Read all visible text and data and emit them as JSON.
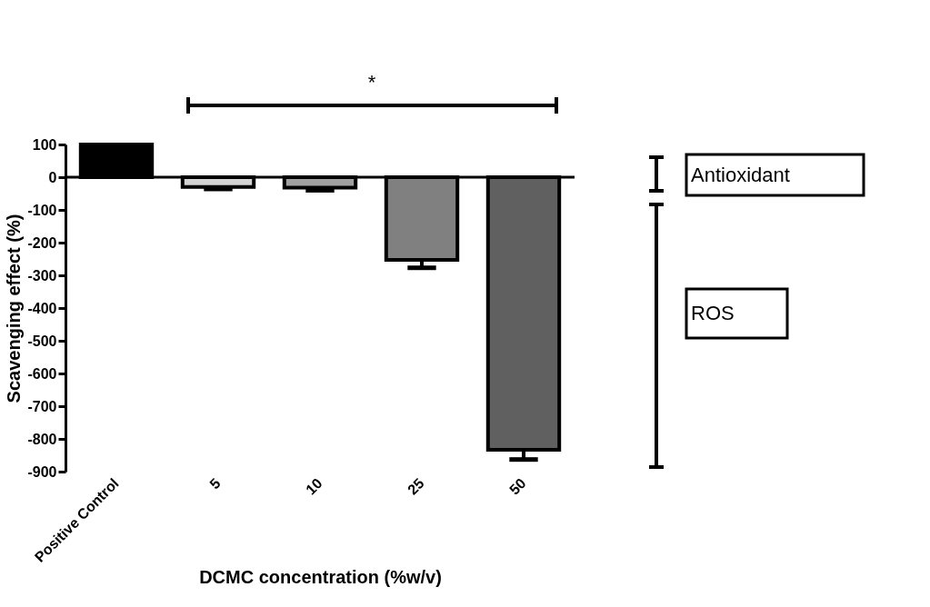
{
  "chart_data": {
    "type": "bar",
    "xlabel": "DCMC concentration (%w/v)",
    "ylabel": "Scavenging effect (%)",
    "categories": [
      "Positive Control",
      "5",
      "10",
      "25",
      "50"
    ],
    "values": [
      100,
      -30,
      -32,
      -253,
      -833
    ],
    "colors": [
      "#000000",
      "#d3d3d3",
      "#a0a0a0",
      "#808080",
      "#606060"
    ],
    "errors": [
      null,
      [
        -36,
        -30
      ],
      [
        -40,
        -32
      ],
      [
        -277,
        -253
      ],
      [
        -863,
        -833
      ]
    ],
    "ylim": [
      -900,
      100
    ],
    "yticks": [
      100,
      0,
      -100,
      -200,
      -300,
      -400,
      -500,
      -600,
      -700,
      -800,
      -900
    ],
    "grid": false,
    "legend": false,
    "ref_lines": [
      {
        "axis": "y",
        "value": 0,
        "color": "#000000",
        "line_style": "solid"
      }
    ],
    "annotations": [
      "*",
      "Antioxidant",
      "ROS"
    ]
  }
}
